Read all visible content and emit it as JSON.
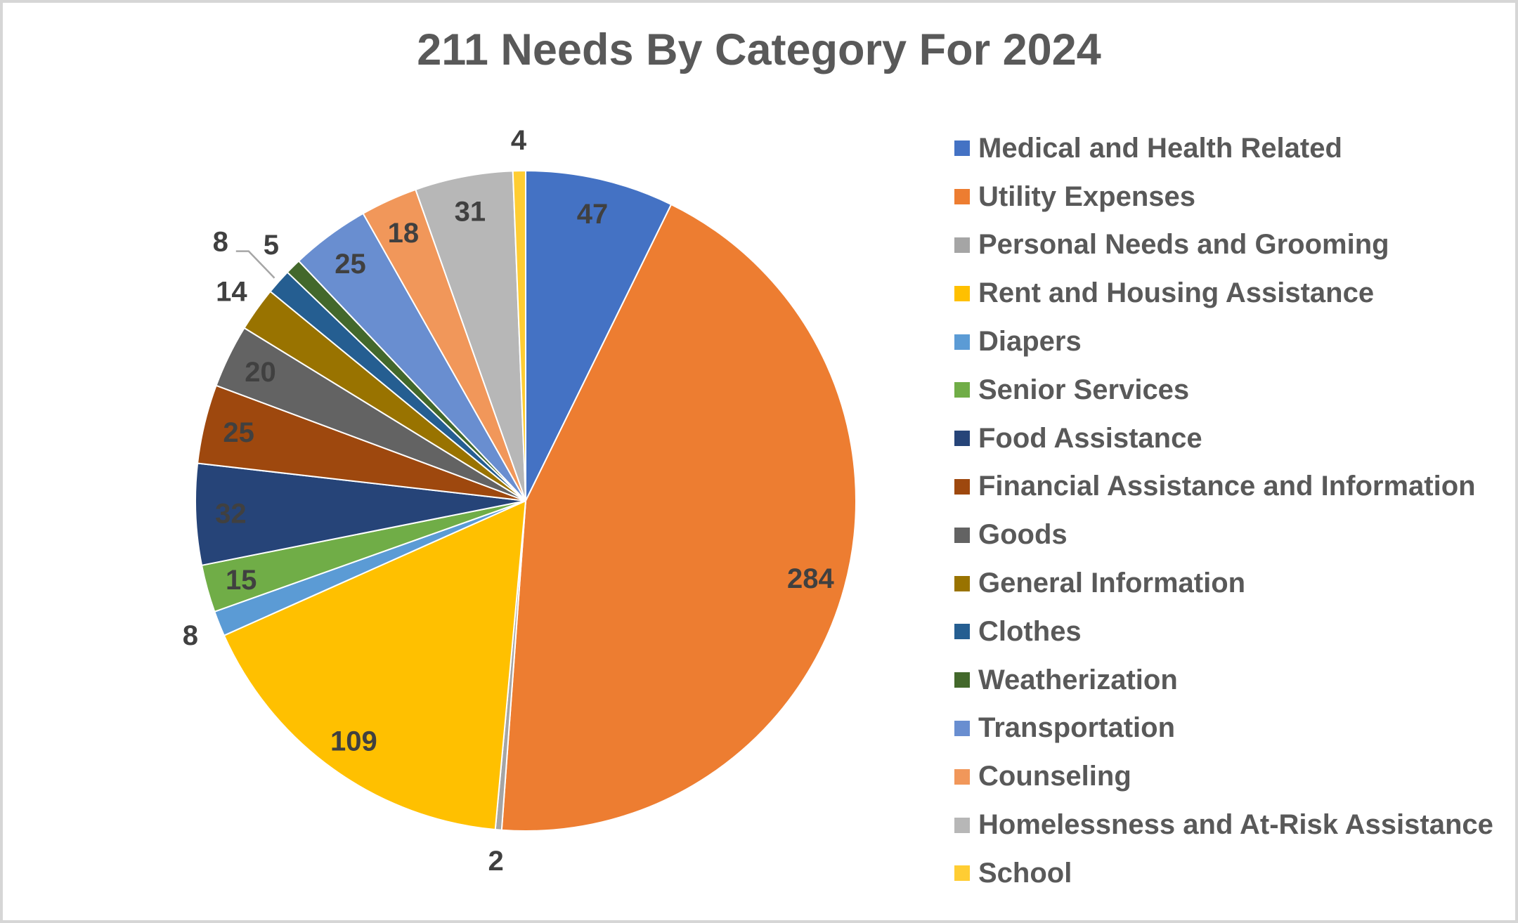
{
  "title": "211 Needs By Category For 2024",
  "chart_data": {
    "type": "pie",
    "title": "211 Needs By Category For 2024",
    "total": 647,
    "start_angle_deg": 0,
    "direction": "clockwise",
    "legend_position": "right",
    "label_color": "#404040",
    "legend_text_color": "#595959",
    "leader_line_color": "#A6A6A6",
    "slices": [
      {
        "label": "Medical and Health Related",
        "value": 47,
        "color": "#4472C4",
        "label_placement": "inside"
      },
      {
        "label": "Utility Expenses",
        "value": 284,
        "color": "#ED7D31",
        "label_placement": "inside"
      },
      {
        "label": "Personal Needs and Grooming",
        "value": 2,
        "color": "#A5A5A5",
        "label_placement": "outside"
      },
      {
        "label": "Rent and Housing Assistance",
        "value": 109,
        "color": "#FFC000",
        "label_placement": "inside"
      },
      {
        "label": "Diapers",
        "value": 8,
        "color": "#5B9BD5",
        "label_placement": "outside"
      },
      {
        "label": "Senior Services",
        "value": 15,
        "color": "#70AD47",
        "label_placement": "inside"
      },
      {
        "label": "Food Assistance",
        "value": 32,
        "color": "#264478",
        "label_placement": "inside"
      },
      {
        "label": "Financial Assistance and Information",
        "value": 25,
        "color": "#9E480E",
        "label_placement": "inside"
      },
      {
        "label": "Goods",
        "value": 20,
        "color": "#636363",
        "label_placement": "inside"
      },
      {
        "label": "General Information",
        "value": 14,
        "color": "#997300",
        "label_placement": "outside"
      },
      {
        "label": "Clothes",
        "value": 8,
        "color": "#255E91",
        "label_placement": "outside-leader"
      },
      {
        "label": "Weatherization",
        "value": 5,
        "color": "#43682B",
        "label_placement": "outside"
      },
      {
        "label": "Transportation",
        "value": 25,
        "color": "#698ED0",
        "label_placement": "inside"
      },
      {
        "label": "Counseling",
        "value": 18,
        "color": "#F1975A",
        "label_placement": "inside"
      },
      {
        "label": "Homelessness and At-Risk Assistance",
        "value": 31,
        "color": "#B7B7B7",
        "label_placement": "inside"
      },
      {
        "label": "School",
        "value": 4,
        "color": "#FFCD33",
        "label_placement": "outside"
      }
    ]
  }
}
